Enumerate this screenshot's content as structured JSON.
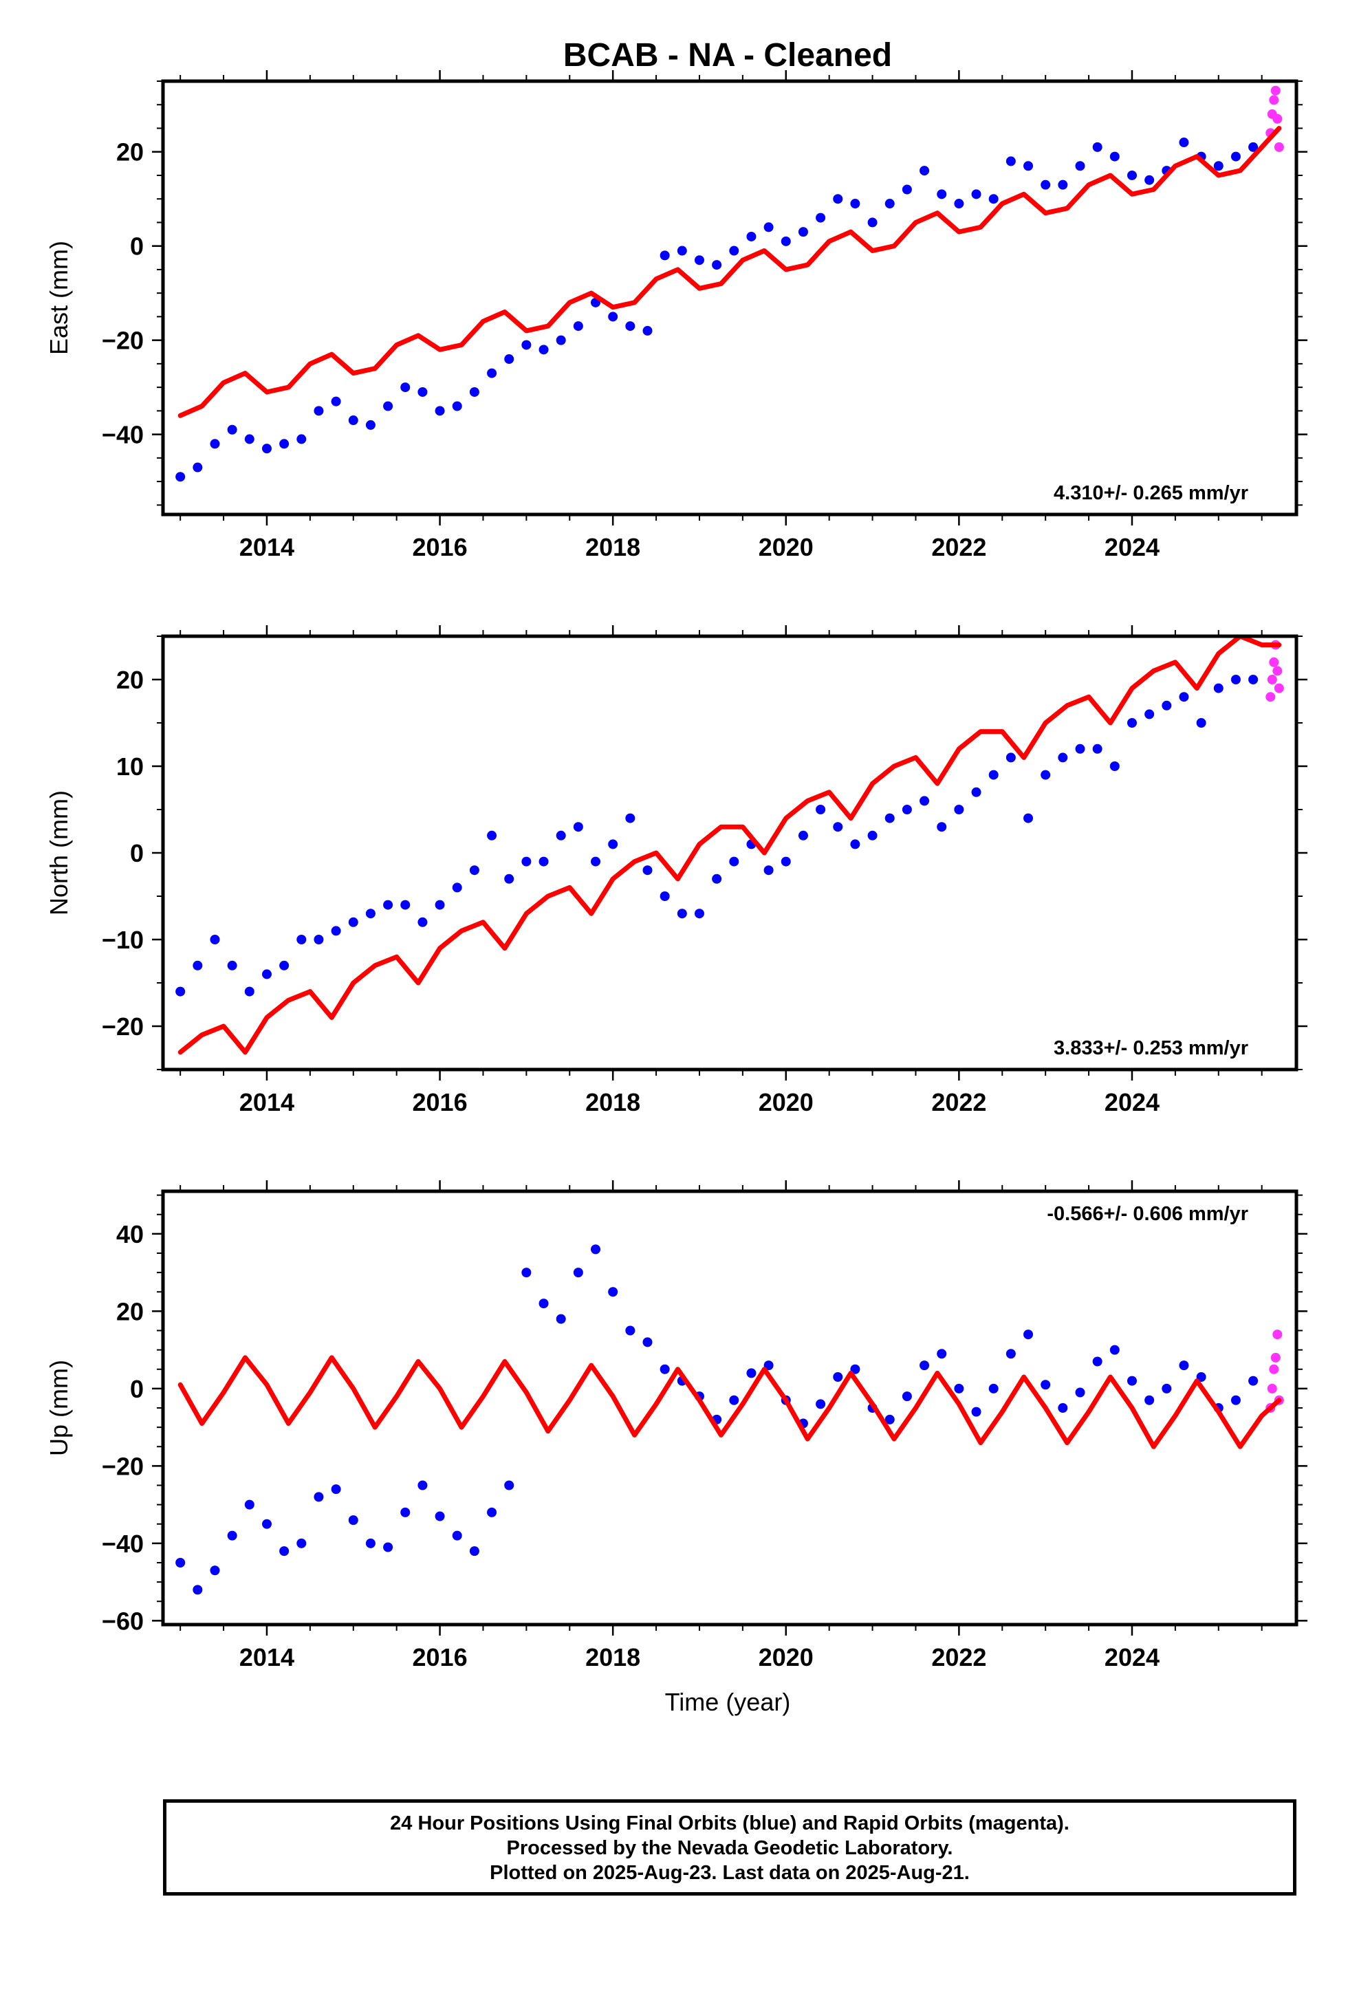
{
  "title": "BCAB  - NA - Cleaned",
  "xlabel": "Time (year)",
  "colors": {
    "final": "#0000ff",
    "rapid": "#ff33ff",
    "model": "#ff0000",
    "axes": "#000000"
  },
  "footer": {
    "line1": "24 Hour Positions Using Final Orbits (blue) and Rapid Orbits (magenta).",
    "line2": "Processed by the Nevada Geodetic Laboratory.",
    "line3": "Plotted on 2025-Aug-23. Last data on 2025-Aug-21."
  },
  "chart_data": [
    {
      "type": "scatter",
      "component": "east",
      "ylabel": "East (mm)",
      "rate_label": "4.310+/- 0.265 mm/yr",
      "rate_position": "bottom-right",
      "xlim": [
        2012.8,
        2025.9
      ],
      "ylim": [
        -57,
        35
      ],
      "xticks": [
        2014,
        2016,
        2018,
        2020,
        2022,
        2024
      ],
      "yticks": [
        -40,
        -20,
        0,
        20
      ],
      "series": [
        {
          "name": "Final Orbits (blue)",
          "style": "dots",
          "x": [
            2013.0,
            2013.2,
            2013.4,
            2013.6,
            2013.8,
            2014.0,
            2014.2,
            2014.4,
            2014.6,
            2014.8,
            2015.0,
            2015.2,
            2015.4,
            2015.6,
            2015.8,
            2016.0,
            2016.2,
            2016.4,
            2016.6,
            2016.8,
            2017.0,
            2017.2,
            2017.4,
            2017.6,
            2017.8,
            2018.0,
            2018.2,
            2018.4,
            2018.6,
            2018.8,
            2019.0,
            2019.2,
            2019.4,
            2019.6,
            2019.8,
            2020.0,
            2020.2,
            2020.4,
            2020.6,
            2020.8,
            2021.0,
            2021.2,
            2021.4,
            2021.6,
            2021.8,
            2022.0,
            2022.2,
            2022.4,
            2022.6,
            2022.8,
            2023.0,
            2023.2,
            2023.4,
            2023.6,
            2023.8,
            2024.0,
            2024.2,
            2024.4,
            2024.6,
            2024.8,
            2025.0,
            2025.2,
            2025.4
          ],
          "y": [
            -49,
            -47,
            -42,
            -39,
            -41,
            -43,
            -42,
            -41,
            -35,
            -33,
            -37,
            -38,
            -34,
            -30,
            -31,
            -35,
            -34,
            -31,
            -27,
            -24,
            -21,
            -22,
            -20,
            -17,
            -12,
            -15,
            -17,
            -18,
            -2,
            -1,
            -3,
            -4,
            -1,
            2,
            4,
            1,
            3,
            6,
            10,
            9,
            5,
            9,
            12,
            16,
            11,
            9,
            11,
            10,
            18,
            17,
            13,
            13,
            17,
            21,
            19,
            15,
            14,
            16,
            22,
            19,
            17,
            19,
            21
          ]
        },
        {
          "name": "Rapid Orbits (magenta)",
          "style": "dots",
          "x": [
            2025.6,
            2025.62,
            2025.64,
            2025.66,
            2025.68,
            2025.7
          ],
          "y": [
            24,
            28,
            31,
            33,
            27,
            21
          ]
        },
        {
          "name": "Model",
          "style": "line",
          "x": [
            2013.0,
            2013.25,
            2013.5,
            2013.75,
            2014.0,
            2014.25,
            2014.5,
            2014.75,
            2015.0,
            2015.25,
            2015.5,
            2015.75,
            2016.0,
            2016.25,
            2016.5,
            2016.75,
            2017.0,
            2017.25,
            2017.5,
            2017.75,
            2018.0,
            2018.25,
            2018.5,
            2018.75,
            2019.0,
            2019.25,
            2019.5,
            2019.75,
            2020.0,
            2020.25,
            2020.5,
            2020.75,
            2021.0,
            2021.25,
            2021.5,
            2021.75,
            2022.0,
            2022.25,
            2022.5,
            2022.75,
            2023.0,
            2023.25,
            2023.5,
            2023.75,
            2024.0,
            2024.25,
            2024.5,
            2024.75,
            2025.0,
            2025.25,
            2025.5,
            2025.7
          ],
          "y": [
            -36,
            -34,
            -29,
            -27,
            -31,
            -30,
            -25,
            -23,
            -27,
            -26,
            -21,
            -19,
            -22,
            -21,
            -16,
            -14,
            -18,
            -17,
            -12,
            -10,
            -13,
            -12,
            -7,
            -5,
            -9,
            -8,
            -3,
            -1,
            -5,
            -4,
            1,
            3,
            -1,
            0,
            5,
            7,
            3,
            4,
            9,
            11,
            7,
            8,
            13,
            15,
            11,
            12,
            17,
            19,
            15,
            16,
            21,
            25
          ]
        }
      ]
    },
    {
      "type": "scatter",
      "component": "north",
      "ylabel": "North (mm)",
      "rate_label": "3.833+/- 0.253 mm/yr",
      "rate_position": "bottom-right",
      "xlim": [
        2012.8,
        2025.9
      ],
      "ylim": [
        -25,
        25
      ],
      "xticks": [
        2014,
        2016,
        2018,
        2020,
        2022,
        2024
      ],
      "yticks": [
        -20,
        -10,
        0,
        10,
        20
      ],
      "series": [
        {
          "name": "Final Orbits (blue)",
          "style": "dots",
          "x": [
            2013.0,
            2013.2,
            2013.4,
            2013.6,
            2013.8,
            2014.0,
            2014.2,
            2014.4,
            2014.6,
            2014.8,
            2015.0,
            2015.2,
            2015.4,
            2015.6,
            2015.8,
            2016.0,
            2016.2,
            2016.4,
            2016.6,
            2016.8,
            2017.0,
            2017.2,
            2017.4,
            2017.6,
            2017.8,
            2018.0,
            2018.2,
            2018.4,
            2018.6,
            2018.8,
            2019.0,
            2019.2,
            2019.4,
            2019.6,
            2019.8,
            2020.0,
            2020.2,
            2020.4,
            2020.6,
            2020.8,
            2021.0,
            2021.2,
            2021.4,
            2021.6,
            2021.8,
            2022.0,
            2022.2,
            2022.4,
            2022.6,
            2022.8,
            2023.0,
            2023.2,
            2023.4,
            2023.6,
            2023.8,
            2024.0,
            2024.2,
            2024.4,
            2024.6,
            2024.8,
            2025.0,
            2025.2,
            2025.4
          ],
          "y": [
            -16,
            -13,
            -10,
            -13,
            -16,
            -14,
            -13,
            -10,
            -10,
            -9,
            -8,
            -7,
            -6,
            -6,
            -8,
            -6,
            -4,
            -2,
            2,
            -3,
            -1,
            -1,
            2,
            3,
            -1,
            1,
            4,
            -2,
            -5,
            -7,
            -7,
            -3,
            -1,
            1,
            -2,
            -1,
            2,
            5,
            3,
            1,
            2,
            4,
            5,
            6,
            3,
            5,
            7,
            9,
            11,
            4,
            9,
            11,
            12,
            12,
            10,
            15,
            16,
            17,
            18,
            15,
            19,
            20,
            20
          ]
        },
        {
          "name": "Rapid Orbits (magenta)",
          "style": "dots",
          "x": [
            2025.6,
            2025.62,
            2025.64,
            2025.66,
            2025.68,
            2025.7
          ],
          "y": [
            18,
            20,
            22,
            24,
            21,
            19
          ]
        },
        {
          "name": "Model",
          "style": "line",
          "x": [
            2013.0,
            2013.25,
            2013.5,
            2013.75,
            2014.0,
            2014.25,
            2014.5,
            2014.75,
            2015.0,
            2015.25,
            2015.5,
            2015.75,
            2016.0,
            2016.25,
            2016.5,
            2016.75,
            2017.0,
            2017.25,
            2017.5,
            2017.75,
            2018.0,
            2018.25,
            2018.5,
            2018.75,
            2019.0,
            2019.25,
            2019.5,
            2019.75,
            2020.0,
            2020.25,
            2020.5,
            2020.75,
            2021.0,
            2021.25,
            2021.5,
            2021.75,
            2022.0,
            2022.25,
            2022.5,
            2022.75,
            2023.0,
            2023.25,
            2023.5,
            2023.75,
            2024.0,
            2024.25,
            2024.5,
            2024.75,
            2025.0,
            2025.25,
            2025.5,
            2025.7
          ],
          "y": [
            -23,
            -21,
            -20,
            -23,
            -19,
            -17,
            -16,
            -19,
            -15,
            -13,
            -12,
            -15,
            -11,
            -9,
            -8,
            -11,
            -7,
            -5,
            -4,
            -7,
            -3,
            -1,
            0,
            -3,
            1,
            3,
            3,
            0,
            4,
            6,
            7,
            4,
            8,
            10,
            11,
            8,
            12,
            14,
            14,
            11,
            15,
            17,
            18,
            15,
            19,
            21,
            22,
            19,
            23,
            25,
            24,
            24
          ]
        }
      ]
    },
    {
      "type": "scatter",
      "component": "up",
      "ylabel": "Up (mm)",
      "rate_label": "-0.566+/- 0.606 mm/yr",
      "rate_position": "top-right",
      "xlim": [
        2012.8,
        2025.9
      ],
      "ylim": [
        -61,
        51
      ],
      "xticks": [
        2014,
        2016,
        2018,
        2020,
        2022,
        2024
      ],
      "yticks": [
        -60,
        -40,
        -20,
        0,
        20,
        40
      ],
      "series": [
        {
          "name": "Final Orbits (blue)",
          "style": "dots",
          "x": [
            2013.0,
            2013.2,
            2013.4,
            2013.6,
            2013.8,
            2014.0,
            2014.2,
            2014.4,
            2014.6,
            2014.8,
            2015.0,
            2015.2,
            2015.4,
            2015.6,
            2015.8,
            2016.0,
            2016.2,
            2016.4,
            2016.6,
            2016.8,
            2017.0,
            2017.2,
            2017.4,
            2017.6,
            2017.8,
            2018.0,
            2018.2,
            2018.4,
            2018.6,
            2018.8,
            2019.0,
            2019.2,
            2019.4,
            2019.6,
            2019.8,
            2020.0,
            2020.2,
            2020.4,
            2020.6,
            2020.8,
            2021.0,
            2021.2,
            2021.4,
            2021.6,
            2021.8,
            2022.0,
            2022.2,
            2022.4,
            2022.6,
            2022.8,
            2023.0,
            2023.2,
            2023.4,
            2023.6,
            2023.8,
            2024.0,
            2024.2,
            2024.4,
            2024.6,
            2024.8,
            2025.0,
            2025.2,
            2025.4
          ],
          "y": [
            -45,
            -52,
            -47,
            -38,
            -30,
            -35,
            -42,
            -40,
            -28,
            -26,
            -34,
            -40,
            -41,
            -32,
            -25,
            -33,
            -38,
            -42,
            -32,
            -25,
            30,
            22,
            18,
            30,
            36,
            25,
            15,
            12,
            5,
            2,
            -2,
            -8,
            -3,
            4,
            6,
            -3,
            -9,
            -4,
            3,
            5,
            -5,
            -8,
            -2,
            6,
            9,
            0,
            -6,
            0,
            9,
            14,
            1,
            -5,
            -1,
            7,
            10,
            2,
            -3,
            0,
            6,
            3,
            -5,
            -3,
            2
          ]
        },
        {
          "name": "Rapid Orbits (magenta)",
          "style": "dots",
          "x": [
            2025.6,
            2025.62,
            2025.64,
            2025.66,
            2025.68,
            2025.7
          ],
          "y": [
            -5,
            0,
            5,
            8,
            14,
            -3
          ]
        },
        {
          "name": "Model",
          "style": "line",
          "x": [
            2013.0,
            2013.25,
            2013.5,
            2013.75,
            2014.0,
            2014.25,
            2014.5,
            2014.75,
            2015.0,
            2015.25,
            2015.5,
            2015.75,
            2016.0,
            2016.25,
            2016.5,
            2016.75,
            2017.0,
            2017.25,
            2017.5,
            2017.75,
            2018.0,
            2018.25,
            2018.5,
            2018.75,
            2019.0,
            2019.25,
            2019.5,
            2019.75,
            2020.0,
            2020.25,
            2020.5,
            2020.75,
            2021.0,
            2021.25,
            2021.5,
            2021.75,
            2022.0,
            2022.25,
            2022.5,
            2022.75,
            2023.0,
            2023.25,
            2023.5,
            2023.75,
            2024.0,
            2024.25,
            2024.5,
            2024.75,
            2025.0,
            2025.25,
            2025.5,
            2025.7
          ],
          "y": [
            1,
            -9,
            -1,
            8,
            1,
            -9,
            -1,
            8,
            0,
            -10,
            -2,
            7,
            0,
            -10,
            -2,
            7,
            -1,
            -11,
            -3,
            6,
            -2,
            -12,
            -4,
            5,
            -3,
            -12,
            -4,
            5,
            -3,
            -13,
            -5,
            4,
            -4,
            -13,
            -5,
            4,
            -4,
            -14,
            -6,
            3,
            -5,
            -14,
            -6,
            3,
            -5,
            -15,
            -7,
            2,
            -6,
            -15,
            -7,
            -3
          ]
        }
      ]
    }
  ]
}
